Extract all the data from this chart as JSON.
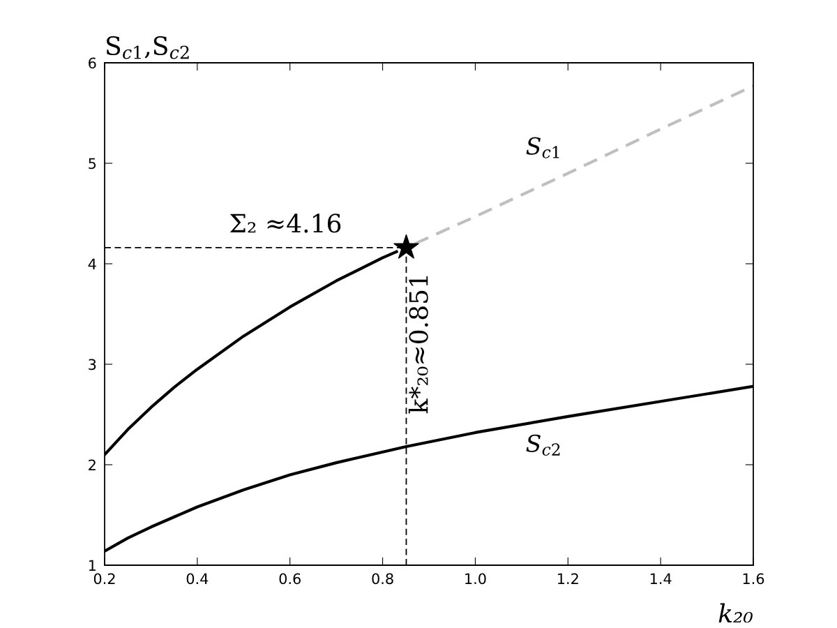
{
  "chart_data": {
    "type": "line",
    "xlabel": "k₂₀",
    "ylabel": "S$_{c1}$,S$_{c2}$",
    "xlim": [
      0.2,
      1.6
    ],
    "ylim": [
      1,
      6
    ],
    "xticks": [
      0.2,
      0.4,
      0.6,
      0.8,
      {
        "value": 1.0,
        "label": "1.0"
      },
      1.2,
      1.4,
      1.6
    ],
    "yticks": [
      1,
      2,
      3,
      4,
      5,
      6
    ],
    "grid": false,
    "series": [
      {
        "color": "#000000",
        "line_style": "solid",
        "x": [
          0.2,
          0.25,
          0.3,
          0.35,
          0.4,
          0.5,
          0.6,
          0.7,
          0.8,
          0.83
        ],
        "values": [
          2.1,
          2.35,
          2.57,
          2.77,
          2.95,
          3.28,
          3.57,
          3.83,
          4.06,
          4.12
        ]
      },
      {
        "color": "#bfbfbf",
        "line_style": "dashed",
        "x": [
          0.87,
          1.0,
          1.2,
          1.4,
          1.6
        ],
        "values": [
          4.2,
          4.47,
          4.9,
          5.34,
          5.77
        ]
      },
      {
        "name": "S$_{c2}$",
        "color": "#000000",
        "line_style": "solid",
        "x": [
          0.2,
          0.25,
          0.3,
          0.4,
          0.5,
          0.6,
          0.7,
          0.851,
          1.0,
          1.2,
          1.4,
          1.6
        ],
        "values": [
          1.14,
          1.27,
          1.38,
          1.58,
          1.75,
          1.9,
          2.02,
          2.18,
          2.32,
          2.48,
          2.63,
          2.78
        ]
      },
      {
        "type": "scatter",
        "marker": "star",
        "color": "#000000",
        "x": [
          0.851
        ],
        "values": [
          4.16
        ]
      }
    ],
    "ref_lines": [
      {
        "axis": "y",
        "value": 4.16,
        "label": "Σ₂ ≈4.16",
        "color": "#000000",
        "line_style": "dashed"
      },
      {
        "axis": "x",
        "value": 0.851,
        "label": "k*₂₀≈0.851",
        "color": "#000000",
        "line_style": "dashed"
      }
    ],
    "annotations": [
      "S$_{c1}$"
    ]
  }
}
